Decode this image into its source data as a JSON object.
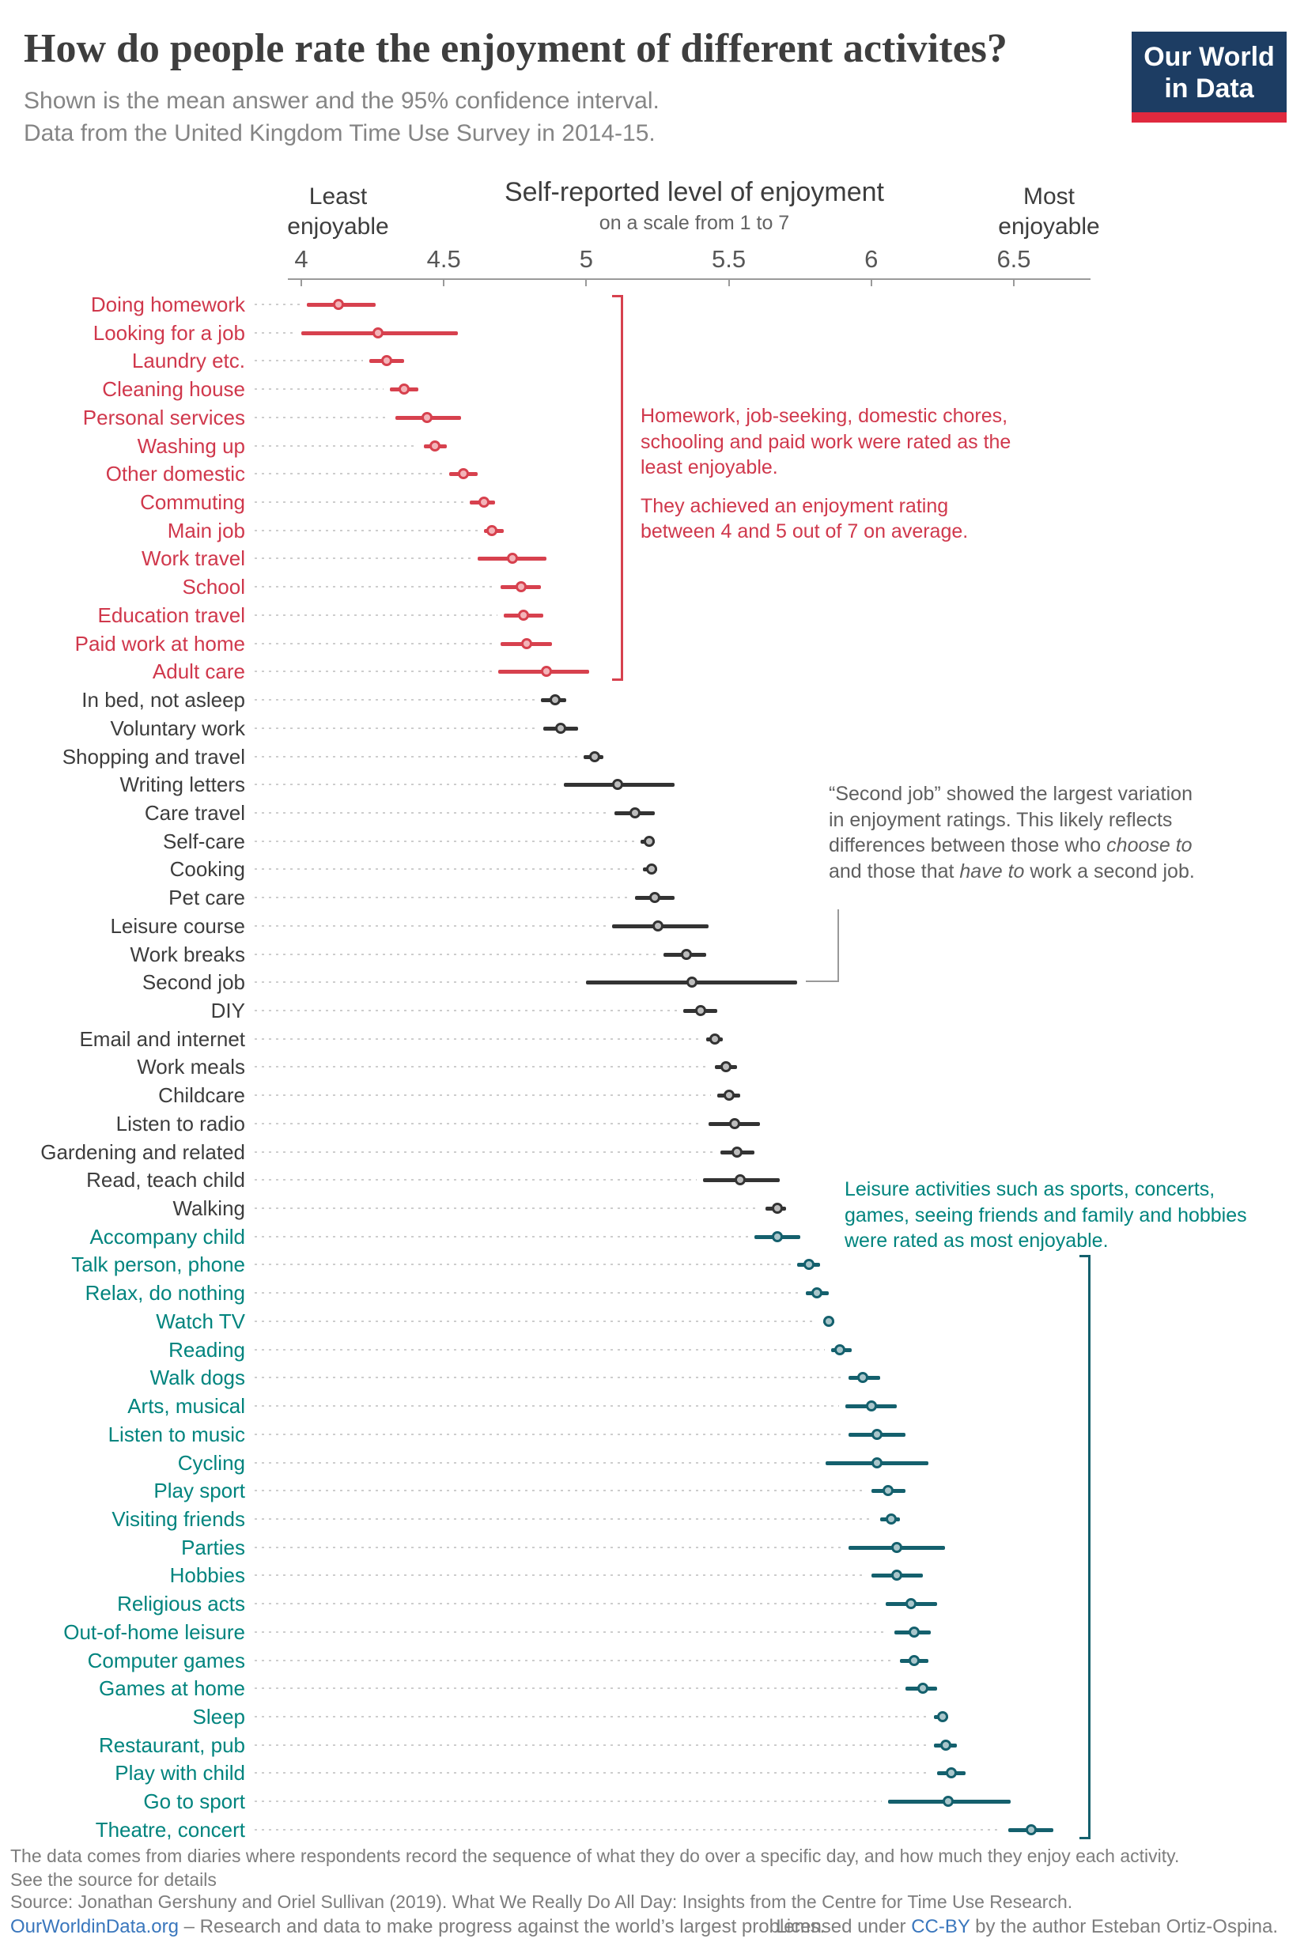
{
  "header": {
    "title": "How do people rate the enjoyment of different activites?",
    "subtitle_line1": "Shown is the mean answer and the 95% confidence interval.",
    "subtitle_line2": "Data from the United Kingdom Time Use Survey in 2014-15.",
    "logo_line1": "Our World",
    "logo_line2": "in Data"
  },
  "annotations": {
    "least_para1": "Homework, job-seeking, domestic chores, schooling and paid work were rated as the least enjoyable.",
    "least_para2": "They achieved an enjoyment rating between 4 and 5 out of 7 on average.",
    "second_job": {
      "part1": "“Second job” showed the largest variation in enjoyment ratings. This likely reflects differences between those who ",
      "italic1": "choose to",
      "part2": " and those that ",
      "italic2": "have to",
      "part3": " work a second job."
    },
    "most": "Leisure activities such as sports, concerts, games, seeing friends and family and hobbies were rated as most enjoyable."
  },
  "footer": {
    "note1": "The data comes from diaries where respondents record the sequence of what they do over a specific day, and how much they enjoy each activity.",
    "note2": "See the source for details",
    "source": "Source: Jonathan Gershuny and Oriel Sullivan (2019). What We Really Do All Day: Insights from the Centre for Time Use Research.",
    "owid_link": "OurWorldinData.org",
    "owid_tagline": " – Research and data to make progress against the world’s largest problems.",
    "license_pre": "Licensed under ",
    "license_link": "CC-BY",
    "license_post": " by the author Esteban Ortiz-Ospina."
  },
  "colors": {
    "groups": {
      "least": {
        "line": "#d7414e",
        "fill": "#f3b4b9",
        "label": "#d0384c"
      },
      "mid": {
        "line": "#333333",
        "fill": "#bdbdbd",
        "label": "#3d3d3d"
      },
      "most": {
        "line": "#14606d",
        "fill": "#a9c6cb",
        "label": "#00847e"
      }
    },
    "annotation_gray": "#5f5f5f",
    "connector_gray": "#999999",
    "logo_bg": "#1d3d63",
    "logo_red": "#e0293e",
    "link_blue": "#3a77bd"
  },
  "chart_data": {
    "type": "scatter",
    "error_bars": "95% confidence interval",
    "axis_title": "Self-reported level of enjoyment",
    "axis_subtitle": "on a scale from 1 to 7",
    "left_label": "Least enjoyable",
    "right_label": "Most enjoyable",
    "x_ticks": [
      4,
      4.5,
      5,
      5.5,
      6,
      6.5
    ],
    "x_range": [
      3.95,
      6.77
    ],
    "series": [
      {
        "label": "Doing homework",
        "group": "least",
        "mean": 4.13,
        "lo": 4.02,
        "hi": 4.26
      },
      {
        "label": "Looking for a job",
        "group": "least",
        "mean": 4.27,
        "lo": 4.0,
        "hi": 4.55
      },
      {
        "label": "Laundry etc.",
        "group": "least",
        "mean": 4.3,
        "lo": 4.24,
        "hi": 4.36
      },
      {
        "label": "Cleaning house",
        "group": "least",
        "mean": 4.36,
        "lo": 4.31,
        "hi": 4.41
      },
      {
        "label": "Personal services",
        "group": "least",
        "mean": 4.44,
        "lo": 4.33,
        "hi": 4.56
      },
      {
        "label": "Washing up",
        "group": "least",
        "mean": 4.47,
        "lo": 4.43,
        "hi": 4.51
      },
      {
        "label": "Other domestic",
        "group": "least",
        "mean": 4.57,
        "lo": 4.52,
        "hi": 4.62
      },
      {
        "label": "Commuting",
        "group": "least",
        "mean": 4.64,
        "lo": 4.59,
        "hi": 4.68
      },
      {
        "label": "Main job",
        "group": "least",
        "mean": 4.67,
        "lo": 4.64,
        "hi": 4.71
      },
      {
        "label": "Work travel",
        "group": "least",
        "mean": 4.74,
        "lo": 4.62,
        "hi": 4.86
      },
      {
        "label": "School",
        "group": "least",
        "mean": 4.77,
        "lo": 4.7,
        "hi": 4.84
      },
      {
        "label": "Education travel",
        "group": "least",
        "mean": 4.78,
        "lo": 4.71,
        "hi": 4.85
      },
      {
        "label": "Paid work at home",
        "group": "least",
        "mean": 4.79,
        "lo": 4.7,
        "hi": 4.88
      },
      {
        "label": "Adult care",
        "group": "least",
        "mean": 4.86,
        "lo": 4.69,
        "hi": 5.01
      },
      {
        "label": "In bed, not asleep",
        "group": "mid",
        "mean": 4.89,
        "lo": 4.84,
        "hi": 4.93
      },
      {
        "label": "Voluntary work",
        "group": "mid",
        "mean": 4.91,
        "lo": 4.85,
        "hi": 4.97
      },
      {
        "label": "Shopping and travel",
        "group": "mid",
        "mean": 5.03,
        "lo": 4.99,
        "hi": 5.06
      },
      {
        "label": "Writing letters",
        "group": "mid",
        "mean": 5.11,
        "lo": 4.92,
        "hi": 5.31
      },
      {
        "label": "Care travel",
        "group": "mid",
        "mean": 5.17,
        "lo": 5.1,
        "hi": 5.24
      },
      {
        "label": "Self-care",
        "group": "mid",
        "mean": 5.22,
        "lo": 5.19,
        "hi": 5.24
      },
      {
        "label": "Cooking",
        "group": "mid",
        "mean": 5.23,
        "lo": 5.2,
        "hi": 5.25
      },
      {
        "label": "Pet care",
        "group": "mid",
        "mean": 5.24,
        "lo": 5.17,
        "hi": 5.31
      },
      {
        "label": "Leisure course",
        "group": "mid",
        "mean": 5.25,
        "lo": 5.09,
        "hi": 5.43
      },
      {
        "label": "Work breaks",
        "group": "mid",
        "mean": 5.35,
        "lo": 5.27,
        "hi": 5.42
      },
      {
        "label": "Second job",
        "group": "mid",
        "mean": 5.37,
        "lo": 5.0,
        "hi": 5.74
      },
      {
        "label": "DIY",
        "group": "mid",
        "mean": 5.4,
        "lo": 5.34,
        "hi": 5.46
      },
      {
        "label": "Email and internet",
        "group": "mid",
        "mean": 5.45,
        "lo": 5.42,
        "hi": 5.48
      },
      {
        "label": "Work meals",
        "group": "mid",
        "mean": 5.49,
        "lo": 5.45,
        "hi": 5.53
      },
      {
        "label": "Childcare",
        "group": "mid",
        "mean": 5.5,
        "lo": 5.46,
        "hi": 5.54
      },
      {
        "label": "Listen to radio",
        "group": "mid",
        "mean": 5.52,
        "lo": 5.43,
        "hi": 5.61
      },
      {
        "label": "Gardening and related",
        "group": "mid",
        "mean": 5.53,
        "lo": 5.47,
        "hi": 5.59
      },
      {
        "label": "Read, teach child",
        "group": "mid",
        "mean": 5.54,
        "lo": 5.41,
        "hi": 5.68
      },
      {
        "label": "Walking",
        "group": "mid",
        "mean": 5.67,
        "lo": 5.63,
        "hi": 5.7
      },
      {
        "label": "Accompany child",
        "group": "most",
        "mean": 5.67,
        "lo": 5.59,
        "hi": 5.75
      },
      {
        "label": "Talk person, phone",
        "group": "most",
        "mean": 5.78,
        "lo": 5.74,
        "hi": 5.82
      },
      {
        "label": "Relax, do nothing",
        "group": "most",
        "mean": 5.81,
        "lo": 5.77,
        "hi": 5.85
      },
      {
        "label": "Watch TV",
        "group": "most",
        "mean": 5.85,
        "lo": 5.83,
        "hi": 5.87
      },
      {
        "label": "Reading",
        "group": "most",
        "mean": 5.89,
        "lo": 5.86,
        "hi": 5.93
      },
      {
        "label": "Walk dogs",
        "group": "most",
        "mean": 5.97,
        "lo": 5.92,
        "hi": 6.03
      },
      {
        "label": "Arts, musical",
        "group": "most",
        "mean": 6.0,
        "lo": 5.91,
        "hi": 6.09
      },
      {
        "label": "Listen to music",
        "group": "most",
        "mean": 6.02,
        "lo": 5.92,
        "hi": 6.12
      },
      {
        "label": "Cycling",
        "group": "most",
        "mean": 6.02,
        "lo": 5.84,
        "hi": 6.2
      },
      {
        "label": "Play sport",
        "group": "most",
        "mean": 6.06,
        "lo": 6.0,
        "hi": 6.12
      },
      {
        "label": "Visiting friends",
        "group": "most",
        "mean": 6.07,
        "lo": 6.03,
        "hi": 6.1
      },
      {
        "label": "Parties",
        "group": "most",
        "mean": 6.09,
        "lo": 5.92,
        "hi": 6.26
      },
      {
        "label": "Hobbies",
        "group": "most",
        "mean": 6.09,
        "lo": 6.0,
        "hi": 6.18
      },
      {
        "label": "Religious acts",
        "group": "most",
        "mean": 6.14,
        "lo": 6.05,
        "hi": 6.23
      },
      {
        "label": "Out-of-home leisure",
        "group": "most",
        "mean": 6.15,
        "lo": 6.08,
        "hi": 6.21
      },
      {
        "label": "Computer games",
        "group": "most",
        "mean": 6.15,
        "lo": 6.1,
        "hi": 6.2
      },
      {
        "label": "Games at home",
        "group": "most",
        "mean": 6.18,
        "lo": 6.12,
        "hi": 6.23
      },
      {
        "label": "Sleep",
        "group": "most",
        "mean": 6.25,
        "lo": 6.22,
        "hi": 6.27
      },
      {
        "label": "Restaurant, pub",
        "group": "most",
        "mean": 6.26,
        "lo": 6.22,
        "hi": 6.3
      },
      {
        "label": "Play with child",
        "group": "most",
        "mean": 6.28,
        "lo": 6.23,
        "hi": 6.33
      },
      {
        "label": "Go to sport",
        "group": "most",
        "mean": 6.27,
        "lo": 6.06,
        "hi": 6.49
      },
      {
        "label": "Theatre, concert",
        "group": "most",
        "mean": 6.56,
        "lo": 6.48,
        "hi": 6.64
      }
    ]
  }
}
